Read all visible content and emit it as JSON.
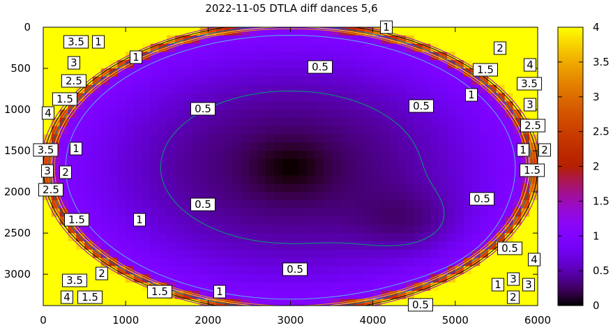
{
  "chart_data": {
    "type": "heatmap",
    "title": "2022-11-05 DTLA diff dances 5,6",
    "xlabel": "",
    "ylabel": "",
    "xlim": [
      0,
      6000
    ],
    "ylim": [
      0,
      3380
    ],
    "y_reversed": true,
    "zlim": [
      0,
      4
    ],
    "grid": false,
    "x_ticks": [
      "0",
      "1000",
      "2000",
      "3000",
      "4000",
      "5000",
      "6000"
    ],
    "y_ticks": [
      "0",
      "500",
      "1000",
      "1500",
      "2000",
      "2500",
      "3000"
    ],
    "colorbar": {
      "position": "right",
      "ticks": [
        "0",
        "0.5",
        "1",
        "1.5",
        "2",
        "2.5",
        "3",
        "3.5",
        "4"
      ],
      "palette": [
        "#000000",
        "#8004ff",
        "#b42000",
        "#ffff00"
      ]
    },
    "minima": [
      [
        3000,
        1700
      ],
      [
        4500,
        2400
      ]
    ],
    "contour_levels": [
      0.5,
      1,
      1.5,
      2,
      2.5,
      3,
      3.5,
      4
    ],
    "contour_colors": {
      "0.5": "#009e73",
      "1": "#56b4e9",
      "1.5": "#e69f00",
      "2": "#f0e442",
      "2.5": "#0072b2",
      "3": "#e51e10",
      "3.5": "#000000",
      "4": "#9400d3"
    },
    "contour_labels": [
      {
        "text": "1",
        "x": 4164,
        "y": 0
      },
      {
        "text": "3.5",
        "x": 398,
        "y": 178
      },
      {
        "text": "3",
        "x": 372,
        "y": 280
      },
      {
        "text": "1",
        "x": 669,
        "y": 178
      },
      {
        "text": "2.5",
        "x": 372,
        "y": 347
      },
      {
        "text": "1",
        "x": 1126,
        "y": 364
      },
      {
        "text": "2",
        "x": 5543,
        "y": 254
      },
      {
        "text": "0.5",
        "x": 3360,
        "y": 483
      },
      {
        "text": "1.5",
        "x": 5365,
        "y": 517
      },
      {
        "text": "3.5",
        "x": 5899,
        "y": 686
      },
      {
        "text": "4",
        "x": 5907,
        "y": 610
      },
      {
        "text": "3",
        "x": 5907,
        "y": 788
      },
      {
        "text": "1",
        "x": 5196,
        "y": 822
      },
      {
        "text": "1.5",
        "x": 262,
        "y": 872
      },
      {
        "text": "0.5",
        "x": 1938,
        "y": 991
      },
      {
        "text": "0.5",
        "x": 4587,
        "y": 957
      },
      {
        "text": "4",
        "x": 59,
        "y": 1042
      },
      {
        "text": "2.5",
        "x": 5941,
        "y": 1042
      },
      {
        "text": "1",
        "x": 398,
        "y": 1474
      },
      {
        "text": "3",
        "x": 51,
        "y": 1745
      },
      {
        "text": "3.5",
        "x": 25,
        "y": 1643
      },
      {
        "text": "1.5",
        "x": 5933,
        "y": 1737
      },
      {
        "text": "1",
        "x": 5822,
        "y": 1643
      },
      {
        "text": "2",
        "x": 5966,
        "y": 1643
      },
      {
        "text": "2.5",
        "x": 93,
        "y": 1821
      },
      {
        "text": "2",
        "x": 152,
        "y": 1914
      },
      {
        "text": "0.5",
        "x": 5323,
        "y": 2084
      },
      {
        "text": "0.5",
        "x": 1938,
        "y": 2152
      },
      {
        "text": "1.5",
        "x": 406,
        "y": 2338
      },
      {
        "text": "1",
        "x": 1168,
        "y": 2338
      },
      {
        "text": "0.5",
        "x": 5662,
        "y": 2685
      },
      {
        "text": "0.5",
        "x": 3055,
        "y": 2939
      },
      {
        "text": "3.5",
        "x": 381,
        "y": 3075
      },
      {
        "text": "1.5",
        "x": 567,
        "y": 3126
      },
      {
        "text": "4",
        "x": 406,
        "y": 3126
      },
      {
        "text": "2",
        "x": 711,
        "y": 3143
      },
      {
        "text": "1.5",
        "x": 1413,
        "y": 3211
      },
      {
        "text": "1",
        "x": 2141,
        "y": 3211
      },
      {
        "text": "3",
        "x": 5704,
        "y": 3058
      },
      {
        "text": "1",
        "x": 5518,
        "y": 3126
      },
      {
        "text": "2",
        "x": 5585,
        "y": 3126
      },
      {
        "text": "3",
        "x": 5653,
        "y": 3126
      },
      {
        "text": "4",
        "x": 5721,
        "y": 3126
      },
      {
        "text": "0.5",
        "x": 4578,
        "y": 3371
      }
    ]
  }
}
